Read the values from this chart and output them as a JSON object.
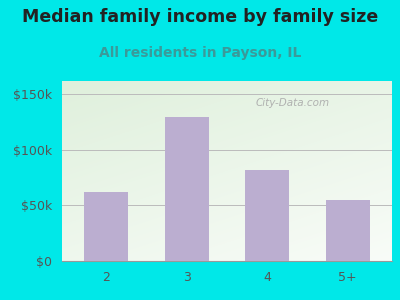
{
  "title": "Median family income by family size",
  "subtitle": "All residents in Payson, IL",
  "categories": [
    "2",
    "3",
    "4",
    "5+"
  ],
  "values": [
    62000,
    130000,
    82000,
    55000
  ],
  "bar_color": "#bbaed0",
  "title_color": "#222222",
  "subtitle_color": "#3a9a9a",
  "outer_bg": "#00e8e8",
  "plot_bg_topleft": "#dff0dc",
  "plot_bg_bottomright": "#f8fff8",
  "yticks": [
    0,
    50000,
    100000,
    150000
  ],
  "ytick_labels": [
    "$0",
    "$50k",
    "$100k",
    "$150k"
  ],
  "ylim": [
    0,
    162000
  ],
  "watermark": "City-Data.com",
  "title_fontsize": 12.5,
  "subtitle_fontsize": 10,
  "tick_fontsize": 9,
  "ytick_color": "#555555",
  "xtick_color": "#555555",
  "grid_color": "#bbbbbb",
  "bottom_spine_color": "#999999"
}
